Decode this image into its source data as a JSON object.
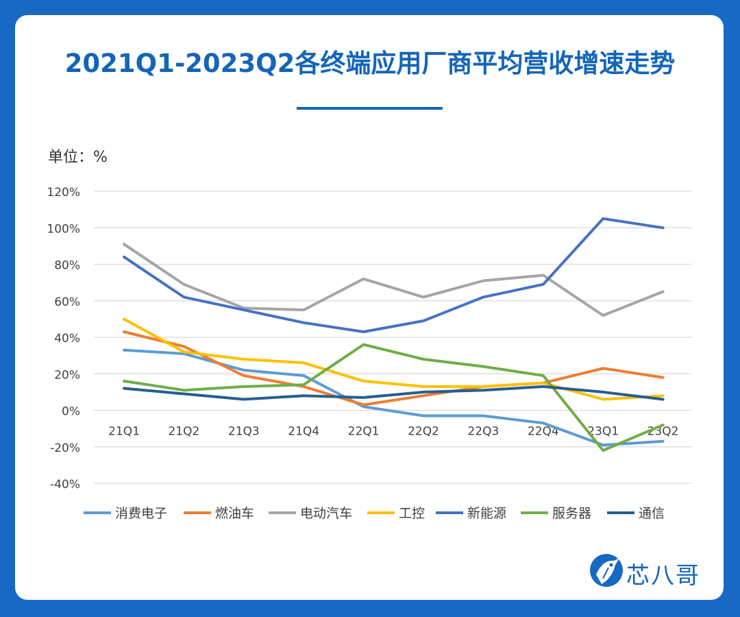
{
  "title": "2021Q1-2023Q2各终端应用厂商平均营收增速走势",
  "unit_label": "单位：%",
  "brand": {
    "name": "芯八哥",
    "primary_color": "#1465b8",
    "frame_color": "#1769c4"
  },
  "chart_data": {
    "type": "line",
    "title": "2021Q1-2023Q2各终端应用厂商平均营收增速走势",
    "ylabel": "单位：%",
    "xlabel": "",
    "categories": [
      "21Q1",
      "21Q2",
      "21Q3",
      "21Q4",
      "22Q1",
      "22Q2",
      "22Q3",
      "22Q4",
      "23Q1",
      "23Q2"
    ],
    "y_ticks": [
      "120%",
      "100%",
      "80%",
      "60%",
      "40%",
      "20%",
      "0%",
      "-20%",
      "-40%"
    ],
    "ylim": [
      -40,
      120
    ],
    "grid": true,
    "legend_position": "bottom",
    "series": [
      {
        "name": "消费电子",
        "color": "#5b9bd5",
        "values": [
          33,
          31,
          22,
          19,
          2,
          -3,
          -3,
          -7,
          -19,
          -17
        ]
      },
      {
        "name": "燃油车",
        "color": "#ed7d31",
        "values": [
          43,
          35,
          19,
          13,
          3,
          8,
          13,
          15,
          23,
          18
        ]
      },
      {
        "name": "电动汽车",
        "color": "#a5a5a5",
        "values": [
          91,
          69,
          56,
          55,
          72,
          62,
          71,
          74,
          52,
          65
        ]
      },
      {
        "name": "工控",
        "color": "#ffc000",
        "values": [
          50,
          32,
          28,
          26,
          16,
          13,
          13,
          15,
          6,
          8
        ]
      },
      {
        "name": "新能源",
        "color": "#4472c4",
        "values": [
          84,
          62,
          55,
          48,
          43,
          49,
          62,
          69,
          105,
          100
        ]
      },
      {
        "name": "服务器",
        "color": "#70ad47",
        "values": [
          16,
          11,
          13,
          14,
          36,
          28,
          24,
          19,
          -22,
          -8
        ]
      },
      {
        "name": "通信",
        "color": "#255e91",
        "values": [
          12,
          9,
          6,
          8,
          7,
          10,
          11,
          13,
          10,
          6
        ]
      }
    ]
  }
}
